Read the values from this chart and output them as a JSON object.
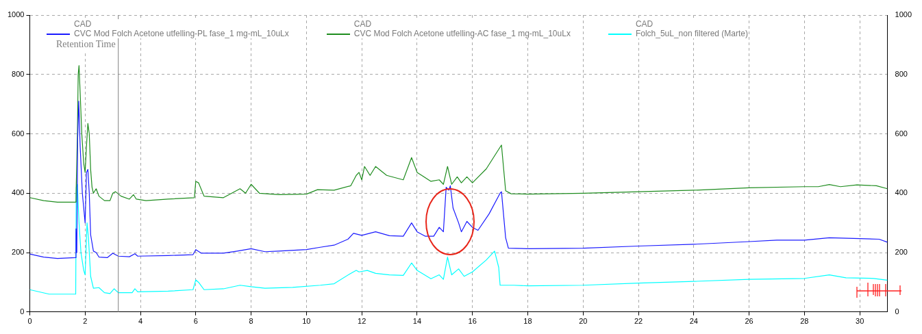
{
  "chart_data": {
    "type": "line",
    "xlim": [
      0,
      31
    ],
    "xticks": [
      0,
      2,
      4,
      6,
      8,
      10,
      12,
      14,
      16,
      18,
      20,
      22,
      24,
      26,
      28,
      30
    ],
    "ylim": [
      0,
      1000
    ],
    "yticks": [
      0,
      200,
      400,
      600,
      800,
      1000
    ],
    "y2lim": [
      0,
      1000
    ],
    "y2ticks": [
      0,
      200,
      400,
      600,
      800,
      1000
    ],
    "grid": true,
    "legend": "top",
    "marker": "none",
    "line_style": "solid",
    "ref_lines": [
      {
        "axis": "x",
        "value": 3.2,
        "label": "Retention Time",
        "color": "#808080"
      }
    ],
    "series": [
      {
        "name": "CAD\nCVC Mod Folch Acetone utfelling-PL fase_1 mg-mL_10uLx",
        "color": "#1a1aff",
        "x": [
          0,
          0.5,
          1,
          1.66,
          1.67,
          1.7,
          1.73,
          1.77,
          1.82,
          1.9,
          2,
          2.05,
          2.1,
          2.15,
          2.2,
          2.3,
          2.4,
          2.5,
          2.8,
          3,
          3.2,
          3.6,
          3.8,
          3.9,
          5,
          5.9,
          6,
          6.2,
          7,
          7.5,
          8,
          8.5,
          9,
          10,
          10.5,
          11,
          11.5,
          11.7,
          12,
          12.5,
          13,
          13.5,
          13.8,
          14,
          14.3,
          14.6,
          14.8,
          14.95,
          15.05,
          15.15,
          15.2,
          15.3,
          15.5,
          15.6,
          15.8,
          16,
          16.2,
          16.6,
          17,
          17.05,
          17.2,
          17.3,
          18,
          20,
          22,
          24,
          26,
          27,
          28,
          28.9,
          30,
          30.7,
          31
        ],
        "values": [
          195,
          185,
          180,
          183,
          280,
          200,
          580,
          710,
          560,
          400,
          300,
          470,
          480,
          400,
          260,
          205,
          200,
          185,
          183,
          198,
          188,
          186,
          196,
          188,
          190,
          193,
          210,
          198,
          198,
          205,
          213,
          203,
          205,
          210,
          218,
          225,
          245,
          265,
          258,
          270,
          257,
          255,
          300,
          270,
          255,
          255,
          285,
          270,
          420,
          410,
          425,
          350,
          300,
          270,
          305,
          285,
          275,
          330,
          400,
          405,
          250,
          215,
          213,
          215,
          222,
          228,
          237,
          242,
          242,
          250,
          247,
          245,
          235
        ]
      },
      {
        "name": "CAD\nCVC Mod Folch Acetone utfelling-AC fase_1 mg-mL_10uLx",
        "color": "#1e8c1e",
        "x": [
          0,
          0.5,
          1,
          1.67,
          1.68,
          1.72,
          1.75,
          1.78,
          1.82,
          1.88,
          1.95,
          2,
          2.05,
          2.1,
          2.15,
          2.2,
          2.25,
          2.3,
          2.4,
          2.5,
          2.7,
          2.9,
          3,
          3.1,
          3.3,
          3.6,
          3.75,
          3.85,
          4.2,
          5,
          5.95,
          6,
          6.1,
          6.3,
          7,
          7.6,
          7.8,
          8,
          8.3,
          9,
          10,
          10.4,
          11,
          11.6,
          11.8,
          11.9,
          12,
          12.1,
          12.3,
          12.5,
          12.9,
          13.5,
          13.8,
          14,
          14.5,
          14.8,
          14.95,
          15.1,
          15.25,
          15.45,
          15.6,
          15.8,
          16,
          16.5,
          17,
          17.05,
          17.2,
          17.4,
          18,
          20,
          22,
          24,
          26,
          28,
          28.5,
          28.9,
          29.3,
          29.9,
          30.6,
          31
        ],
        "values": [
          385,
          375,
          370,
          370,
          430,
          590,
          800,
          830,
          740,
          600,
          500,
          470,
          560,
          635,
          600,
          480,
          420,
          400,
          415,
          390,
          375,
          375,
          400,
          405,
          390,
          380,
          395,
          380,
          375,
          380,
          385,
          440,
          435,
          390,
          385,
          415,
          400,
          430,
          400,
          395,
          397,
          412,
          410,
          425,
          460,
          470,
          445,
          490,
          460,
          490,
          460,
          445,
          520,
          470,
          440,
          445,
          430,
          490,
          430,
          455,
          435,
          455,
          435,
          482,
          555,
          562,
          408,
          398,
          397,
          400,
          405,
          410,
          418,
          422,
          422,
          429,
          422,
          428,
          425,
          415
        ]
      },
      {
        "name": "CAD\nFolch_5uL_non filtered (Marte)",
        "color": "#00ffff",
        "x": [
          0,
          0.7,
          1.66,
          1.68,
          1.72,
          1.78,
          1.85,
          1.95,
          2,
          2.07,
          2.12,
          2.2,
          2.3,
          2.5,
          2.7,
          2.9,
          3.05,
          3.2,
          3.7,
          3.8,
          3.9,
          5,
          5.9,
          6,
          6.1,
          6.3,
          7,
          7.6,
          8,
          8.5,
          9.5,
          10.5,
          11,
          11.6,
          11.8,
          11.9,
          12.2,
          12.5,
          13,
          13.5,
          13.8,
          14,
          14.5,
          14.8,
          14.95,
          15.1,
          15.25,
          15.5,
          15.7,
          16,
          16.5,
          16.8,
          16.95,
          17,
          17.5,
          18,
          20,
          22,
          24,
          26,
          28,
          28.9,
          29.5,
          30.5,
          31
        ],
        "values": [
          75,
          60,
          60,
          420,
          430,
          300,
          200,
          140,
          125,
          300,
          250,
          120,
          80,
          82,
          65,
          62,
          78,
          65,
          65,
          78,
          68,
          70,
          75,
          108,
          100,
          75,
          78,
          90,
          85,
          80,
          83,
          90,
          95,
          130,
          140,
          135,
          140,
          130,
          125,
          123,
          165,
          140,
          112,
          125,
          110,
          185,
          125,
          145,
          120,
          135,
          175,
          205,
          150,
          90,
          90,
          88,
          90,
          97,
          103,
          110,
          113,
          125,
          115,
          113,
          107
        ]
      }
    ]
  }
}
